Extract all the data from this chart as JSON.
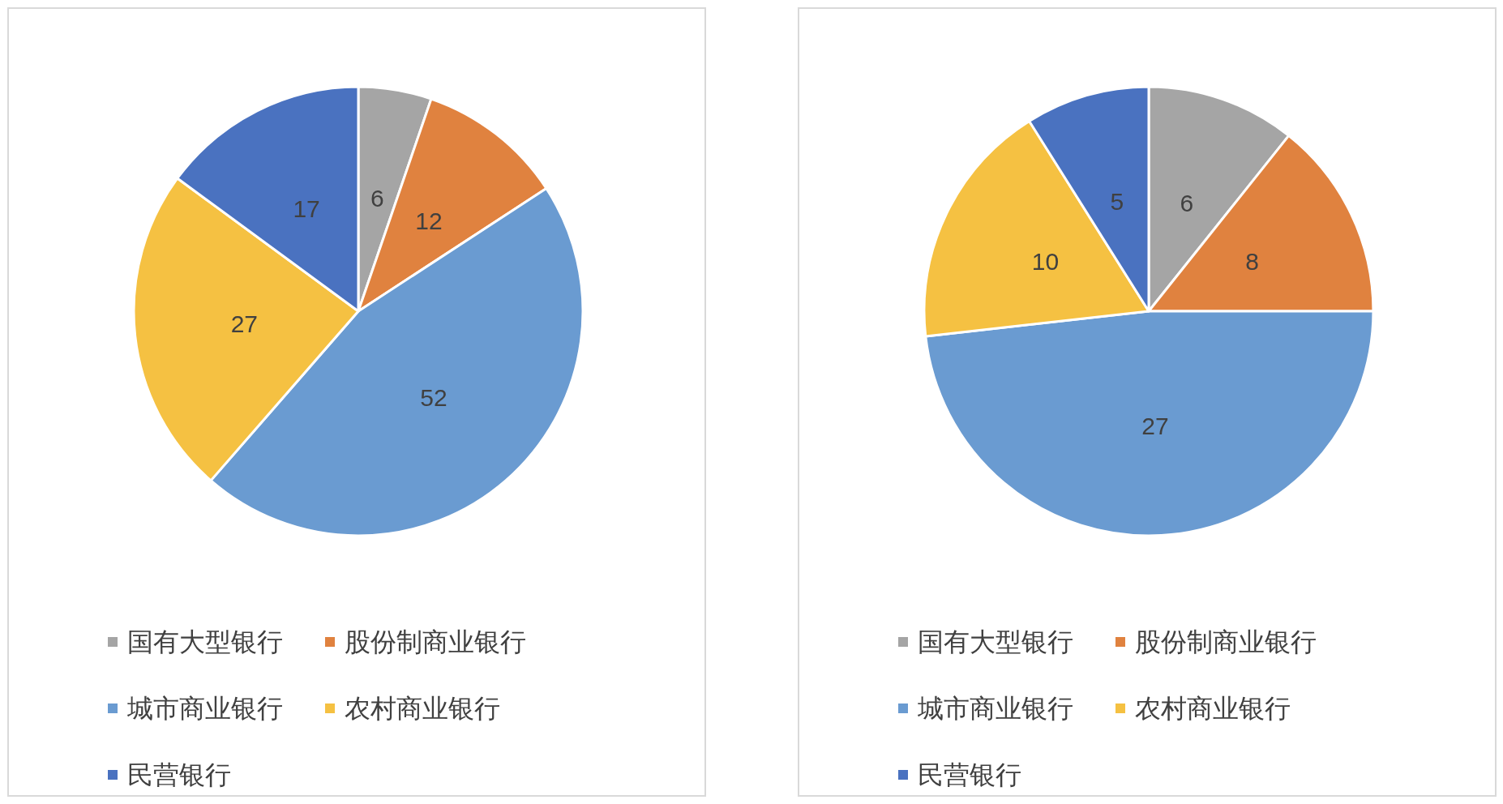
{
  "chart_data": [
    {
      "type": "pie",
      "categories": [
        "国有大型银行",
        "股份制商业银行",
        "城市商业银行",
        "农村商业银行",
        "民营银行"
      ],
      "values": [
        6,
        12,
        52,
        27,
        17
      ],
      "colors": [
        "#a5a5a5",
        "#e0823f",
        "#6a9bd1",
        "#f5c142",
        "#4a72c0"
      ],
      "data_labels": true,
      "legend": "bottom"
    },
    {
      "type": "pie",
      "categories": [
        "国有大型银行",
        "股份制商业银行",
        "城市商业银行",
        "农村商业银行",
        "民营银行"
      ],
      "values": [
        6,
        8,
        27,
        10,
        5
      ],
      "colors": [
        "#a5a5a5",
        "#e0823f",
        "#6a9bd1",
        "#f5c142",
        "#4a72c0"
      ],
      "data_labels": true,
      "legend": "bottom"
    }
  ]
}
